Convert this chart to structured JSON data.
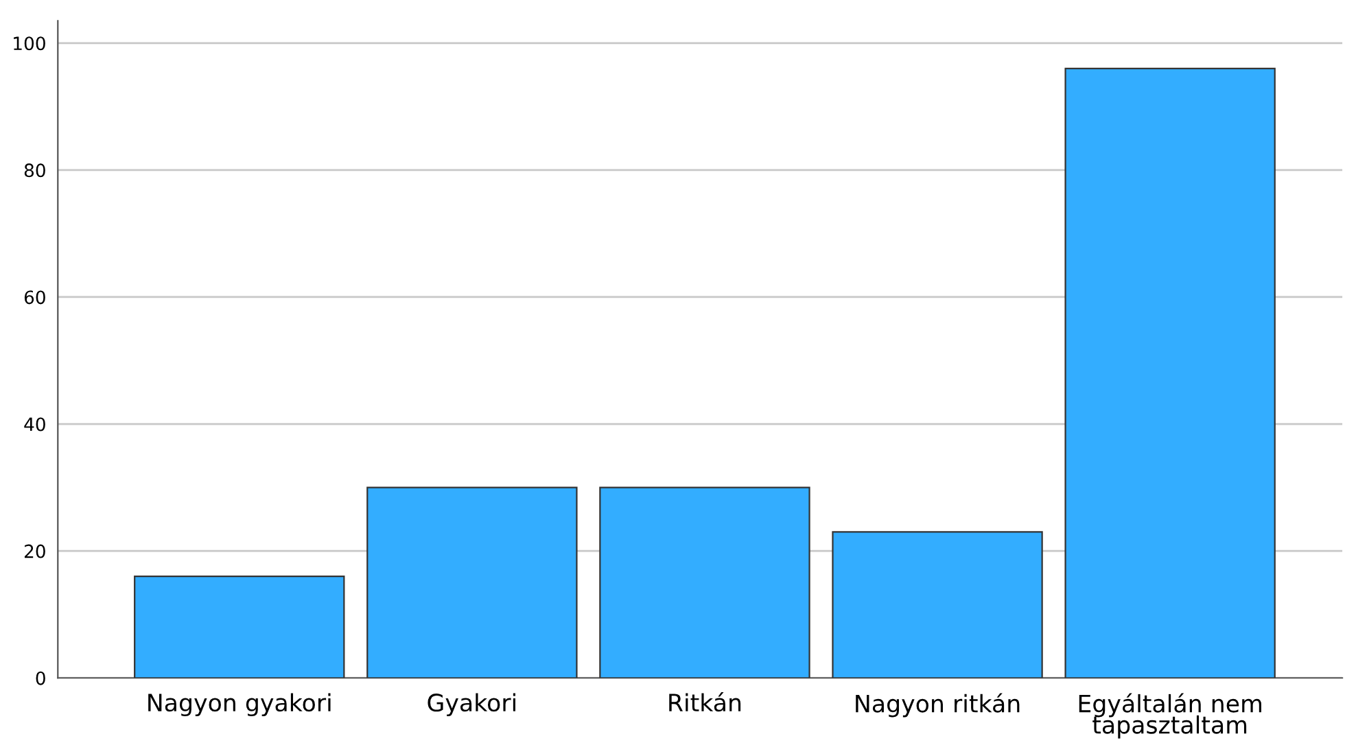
{
  "chart_data": {
    "type": "bar",
    "categories": [
      "Nagyon gyakori",
      "Gyakori",
      "Ritkán",
      "Nagyon ritkán",
      "Egyáltalán nem tapasztaltam"
    ],
    "values": [
      16,
      30,
      30,
      23,
      96
    ],
    "color": "#33adff",
    "ylim": [
      0,
      103.5
    ],
    "yticks": [
      0,
      20,
      40,
      60,
      80,
      100
    ],
    "grid": "y"
  }
}
